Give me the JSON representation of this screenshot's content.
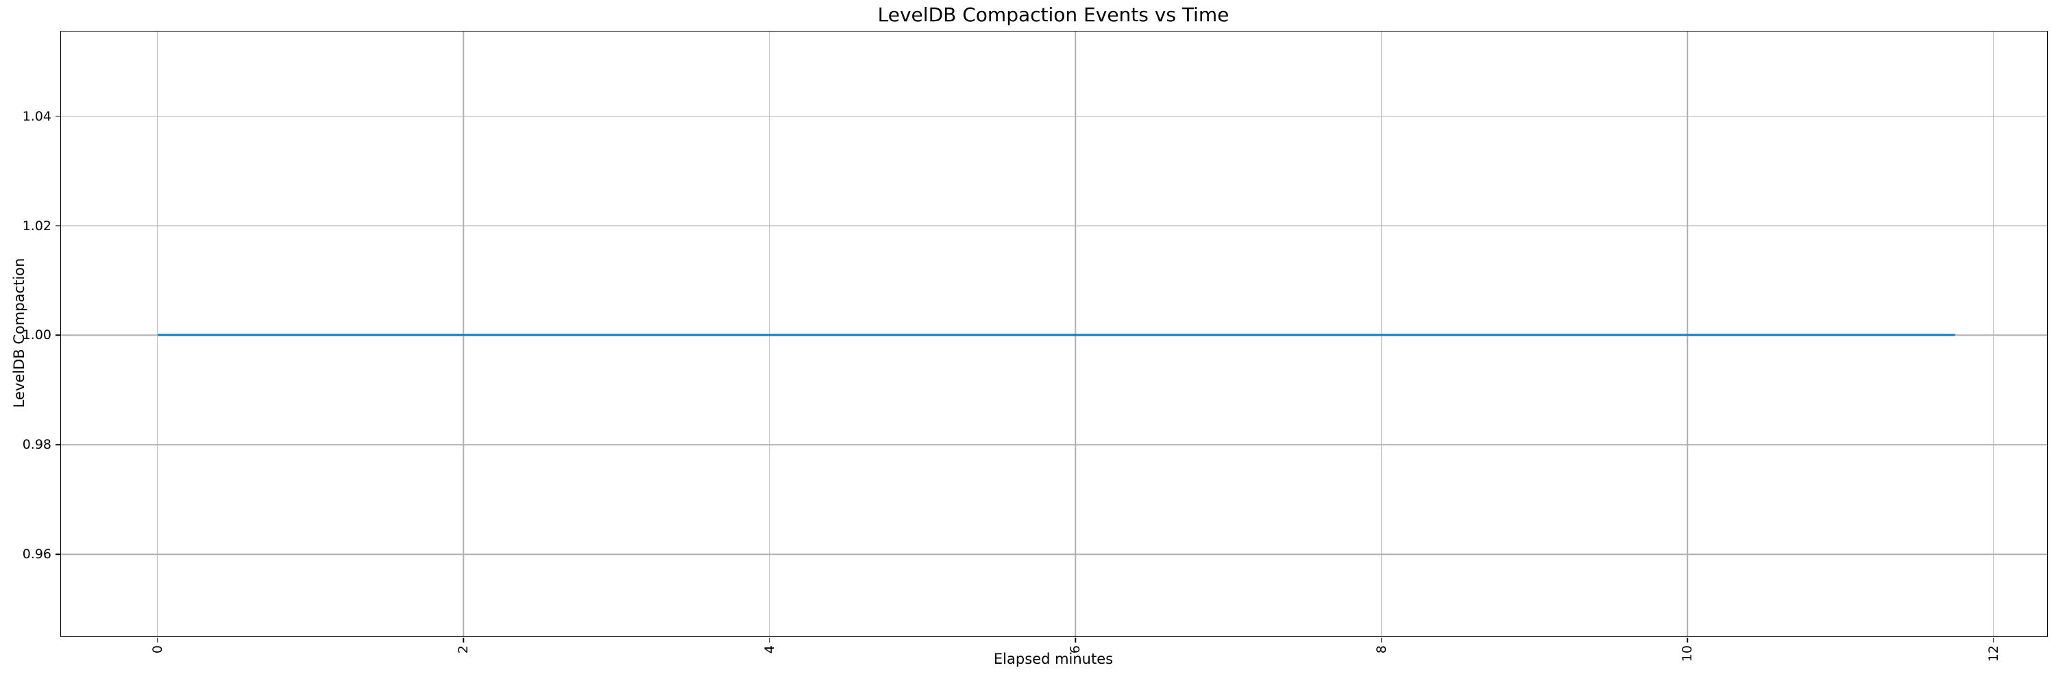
{
  "figure": {
    "background_color": "#ffffff",
    "text_color": "#000000"
  },
  "chart_data": {
    "type": "line",
    "title": "LevelDB Compaction Events vs Time",
    "xlabel": "Elapsed minutes",
    "ylabel": "LevelDB Compaction",
    "series": [
      {
        "name": "LevelDB Compaction",
        "color": "#1f77b4",
        "x": [
          0,
          11.75
        ],
        "y": [
          1.0,
          1.0
        ]
      }
    ],
    "xlim": [
      -0.63,
      12.35
    ],
    "ylim": [
      0.945,
      1.0555
    ],
    "xticks": [
      0,
      2,
      4,
      6,
      8,
      10,
      12
    ],
    "xtick_labels": [
      "0",
      "2",
      "4",
      "6",
      "8",
      "10",
      "12"
    ],
    "xtick_rotation": 90,
    "yticks": [
      0.96,
      0.98,
      1.0,
      1.02,
      1.04
    ],
    "ytick_labels": [
      "0.96",
      "0.98",
      "1.00",
      "1.02",
      "1.04"
    ],
    "grid": true,
    "grid_color": "#b0b0b0",
    "spine_color": "#000000",
    "legend": null,
    "markers": false
  }
}
